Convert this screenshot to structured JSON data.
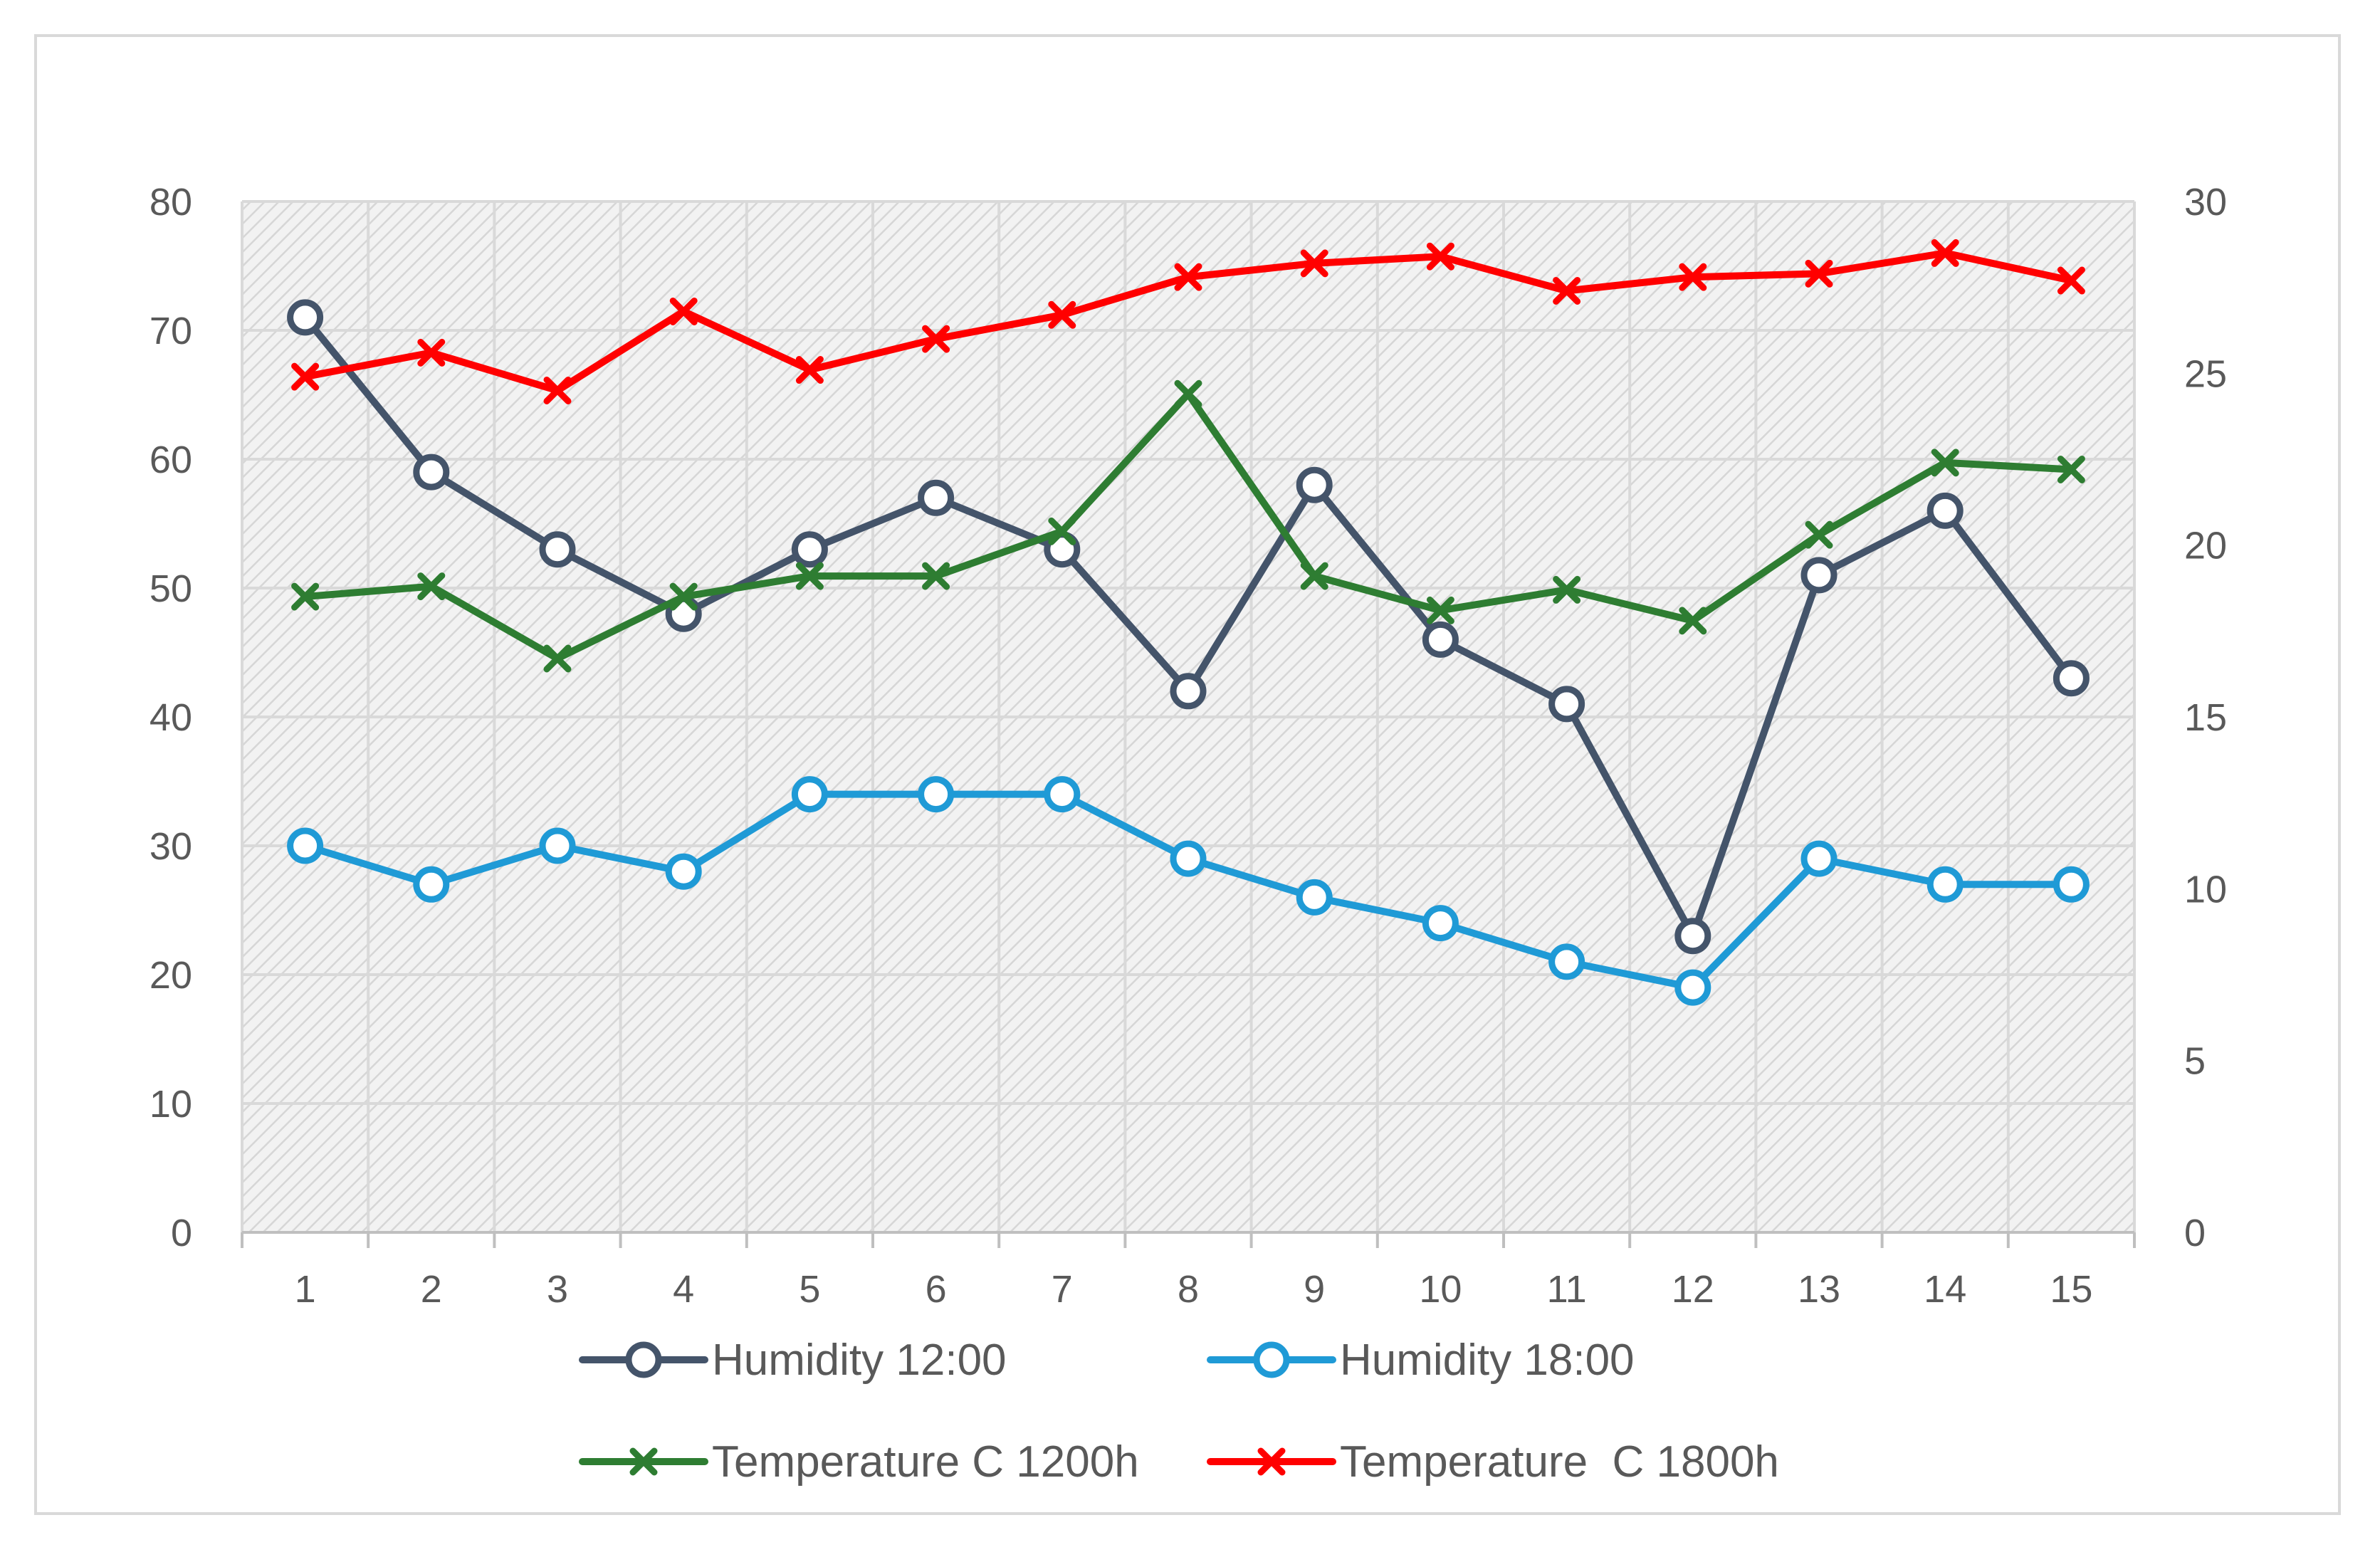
{
  "chart_data": {
    "type": "line",
    "title": "",
    "xlabel": "",
    "ylabel": "",
    "y2label": "",
    "categories": [
      "1",
      "2",
      "3",
      "4",
      "5",
      "6",
      "7",
      "8",
      "9",
      "10",
      "11",
      "12",
      "13",
      "14",
      "15"
    ],
    "ylim": [
      0,
      80
    ],
    "y_ticks": [
      0,
      10,
      20,
      30,
      40,
      50,
      60,
      70,
      80
    ],
    "y2lim": [
      0,
      30
    ],
    "y2_ticks": [
      0,
      5,
      10,
      15,
      20,
      25,
      30
    ],
    "grid": true,
    "legend_position": "bottom",
    "series": [
      {
        "name": "Humidity 12:00",
        "axis": "left",
        "marker": "circle",
        "color": "#44546a",
        "values": [
          71,
          59,
          53,
          48,
          53,
          57,
          53,
          42,
          58,
          46,
          41,
          23,
          51,
          56,
          43
        ]
      },
      {
        "name": "Humidity 18:00",
        "axis": "left",
        "marker": "circle",
        "color": "#1f9ad6",
        "values": [
          30,
          27,
          30,
          28,
          34,
          34,
          34,
          29,
          26,
          24,
          21,
          19,
          29,
          27,
          27
        ]
      },
      {
        "name": "Temperature C 1200h",
        "axis": "right",
        "marker": "x",
        "color": "#2e7d32",
        "values": [
          18.5,
          18.8,
          16.7,
          18.5,
          19.1,
          19.1,
          20.4,
          24.4,
          19.1,
          18.1,
          18.7,
          17.8,
          20.3,
          22.4,
          22.2
        ]
      },
      {
        "name": "Temperature  C 1800h",
        "axis": "right",
        "marker": "x",
        "color": "#ff0000",
        "values": [
          24.9,
          25.6,
          24.5,
          26.8,
          25.1,
          26.0,
          26.7,
          27.8,
          28.2,
          28.4,
          27.4,
          27.8,
          27.9,
          28.5,
          27.7
        ]
      }
    ]
  }
}
